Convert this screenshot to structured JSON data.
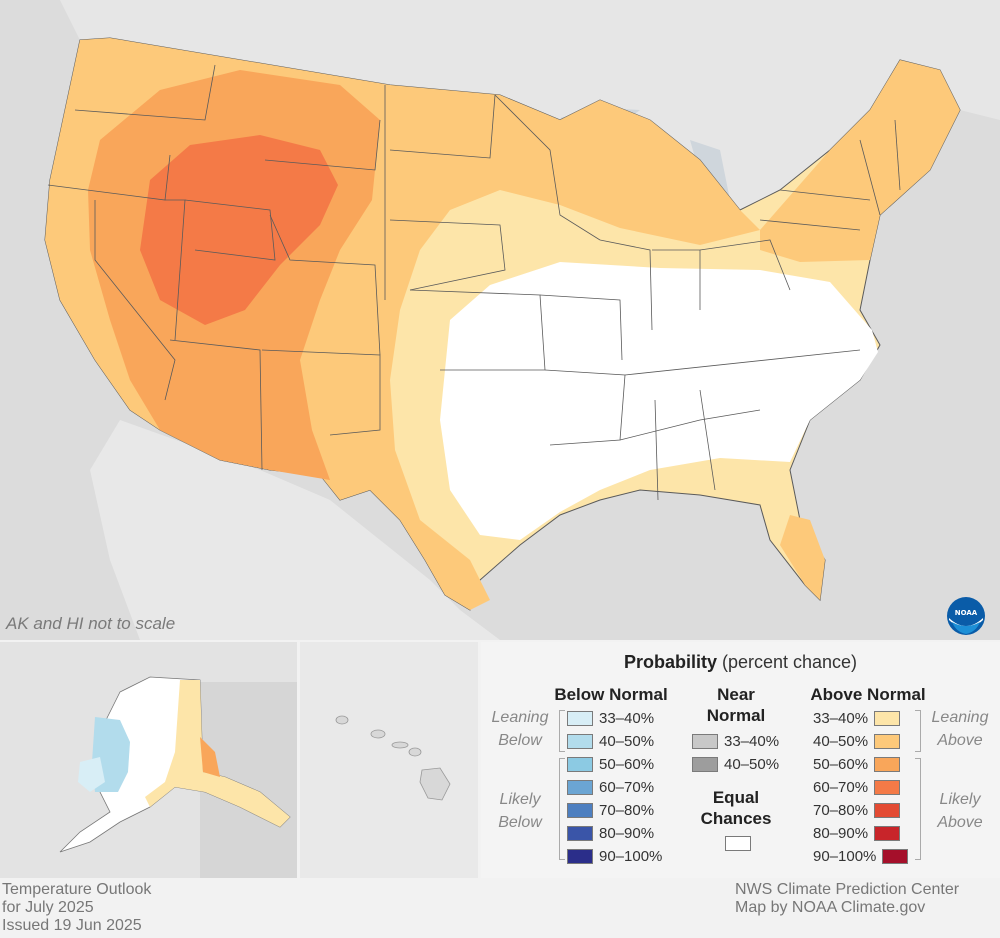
{
  "map_note": "AK and HI not to scale",
  "legend": {
    "title_bold": "Probability",
    "title_rest": "(percent chance)",
    "below": {
      "heading": "Below Normal",
      "leaning_label": "Leaning Below",
      "likely_label": "Likely Below",
      "rows": [
        {
          "label": "33–40%",
          "color": "#d8eef6"
        },
        {
          "label": "40–50%",
          "color": "#b2dcec"
        },
        {
          "label": "50–60%",
          "color": "#8ccae3"
        },
        {
          "label": "60–70%",
          "color": "#6ba5d3"
        },
        {
          "label": "70–80%",
          "color": "#4d7fc0"
        },
        {
          "label": "80–90%",
          "color": "#3a55a8"
        },
        {
          "label": "90–100%",
          "color": "#2b2e8a"
        }
      ]
    },
    "near": {
      "heading": "Near Normal",
      "rows": [
        {
          "label": "33–40%",
          "color": "#c8c8c8"
        },
        {
          "label": "40–50%",
          "color": "#9d9d9d"
        }
      ]
    },
    "equal": {
      "heading": "Equal Chances",
      "color": "#ffffff"
    },
    "above": {
      "heading": "Above Normal",
      "leaning_label": "Leaning Above",
      "likely_label": "Likely Above",
      "rows": [
        {
          "label": "33–40%",
          "color": "#fde5a9"
        },
        {
          "label": "40–50%",
          "color": "#fdc97a"
        },
        {
          "label": "50–60%",
          "color": "#f9a65a"
        },
        {
          "label": "60–70%",
          "color": "#f47a47"
        },
        {
          "label": "70–80%",
          "color": "#e34b33"
        },
        {
          "label": "80–90%",
          "color": "#c8252a"
        },
        {
          "label": "90–100%",
          "color": "#a50f2a"
        }
      ]
    }
  },
  "footer": {
    "left_line1": "Temperature Outlook",
    "left_line2": "for July 2025",
    "left_line3": "Issued 19 Jun 2025",
    "right_line1": "NWS Climate Prediction Center",
    "right_line2": "Map by NOAA Climate.gov"
  },
  "logo_text": "NOAA"
}
